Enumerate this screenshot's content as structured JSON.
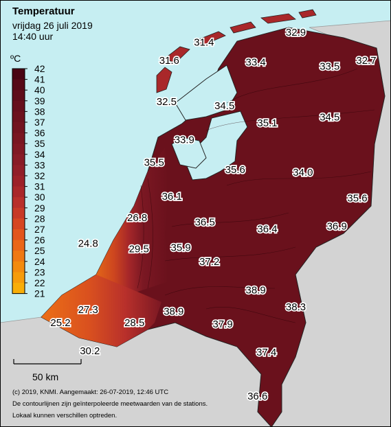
{
  "header": {
    "title": "Temperatuur",
    "date": "vrijdag 26 juli 2019",
    "time": "14:40 uur"
  },
  "legend": {
    "unit": "ºC",
    "ticks": [
      "42",
      "41",
      "40",
      "39",
      "38",
      "37",
      "36",
      "35",
      "34",
      "33",
      "32",
      "31",
      "30",
      "29",
      "28",
      "27",
      "26",
      "25",
      "24",
      "23",
      "22",
      "21"
    ],
    "colors": [
      "#3d0010",
      "#4a0514",
      "#560a18",
      "#5f0e1b",
      "#66101d",
      "#6c121e",
      "#721420",
      "#791722",
      "#801924",
      "#881c27",
      "#911f29",
      "#9c2229",
      "#a9282a",
      "#b8302b",
      "#c73a27",
      "#d64722",
      "#e2561d",
      "#ea6718",
      "#ef7913",
      "#f38b0e",
      "#f69c0b",
      "#f8ae08"
    ]
  },
  "scale_bar": {
    "label": "50 km"
  },
  "footer": {
    "line1": "(c) 2019, KNMI. Aangemaakt: 26-07-2019, 12:46 UTC",
    "line2": "De contourlijnen zijn geïnterpoleerde meetwaarden van de stations.",
    "line3": "Lokaal kunnen verschillen optreden."
  },
  "colors": {
    "sea": "#c6eef2",
    "land_foreign": "#d3d3d3",
    "hot": "#6a111c"
  },
  "stations": [
    {
      "label": "31.4",
      "value": 31.4,
      "lon": 5.17,
      "lat": 53.37
    },
    {
      "label": "32.9",
      "value": 32.9,
      "lon": 6.2,
      "lat": 53.44
    },
    {
      "label": "31.6",
      "value": 31.6,
      "lon": 4.78,
      "lat": 53.24
    },
    {
      "label": "33.4",
      "value": 33.4,
      "lon": 5.75,
      "lat": 53.23
    },
    {
      "label": "33.5",
      "value": 33.5,
      "lon": 6.58,
      "lat": 53.2
    },
    {
      "label": "32.7",
      "value": 32.7,
      "lon": 6.99,
      "lat": 53.24
    },
    {
      "label": "32.5",
      "value": 32.5,
      "lon": 4.75,
      "lat": 52.95
    },
    {
      "label": "34.5",
      "value": 34.5,
      "lon": 5.4,
      "lat": 52.92
    },
    {
      "label": "35.1",
      "value": 35.1,
      "lon": 5.88,
      "lat": 52.8
    },
    {
      "label": "34.5",
      "value": 34.5,
      "lon": 6.58,
      "lat": 52.84
    },
    {
      "label": "33.9",
      "value": 33.9,
      "lon": 4.95,
      "lat": 52.68
    },
    {
      "label": "35.5",
      "value": 35.5,
      "lon": 4.61,
      "lat": 52.52
    },
    {
      "label": "35.6",
      "value": 35.6,
      "lon": 5.52,
      "lat": 52.47
    },
    {
      "label": "34.0",
      "value": 34.0,
      "lon": 6.28,
      "lat": 52.45
    },
    {
      "label": "36.1",
      "value": 36.1,
      "lon": 4.81,
      "lat": 52.28
    },
    {
      "label": "35.6",
      "value": 35.6,
      "lon": 6.89,
      "lat": 52.27
    },
    {
      "label": "26.8",
      "value": 26.8,
      "lon": 4.42,
      "lat": 52.13
    },
    {
      "label": "36.5",
      "value": 36.5,
      "lon": 5.18,
      "lat": 52.1
    },
    {
      "label": "36.4",
      "value": 36.4,
      "lon": 5.88,
      "lat": 52.05
    },
    {
      "label": "36.9",
      "value": 36.9,
      "lon": 6.66,
      "lat": 52.07
    },
    {
      "label": "24.8",
      "value": 24.8,
      "lon": 3.87,
      "lat": 51.95
    },
    {
      "label": "29.5",
      "value": 29.5,
      "lon": 4.44,
      "lat": 51.91
    },
    {
      "label": "35.9",
      "value": 35.9,
      "lon": 4.91,
      "lat": 51.92
    },
    {
      "label": "37.2",
      "value": 37.2,
      "lon": 5.23,
      "lat": 51.82
    },
    {
      "label": "38.9",
      "value": 38.9,
      "lon": 5.75,
      "lat": 51.62
    },
    {
      "label": "38.9",
      "value": 38.9,
      "lon": 4.83,
      "lat": 51.47
    },
    {
      "label": "38.3",
      "value": 38.3,
      "lon": 6.2,
      "lat": 51.5
    },
    {
      "label": "27.3",
      "value": 27.3,
      "lon": 3.87,
      "lat": 51.48
    },
    {
      "label": "25.2",
      "value": 25.2,
      "lon": 3.56,
      "lat": 51.39
    },
    {
      "label": "28.5",
      "value": 28.5,
      "lon": 4.39,
      "lat": 51.39
    },
    {
      "label": "37.9",
      "value": 37.9,
      "lon": 5.38,
      "lat": 51.38
    },
    {
      "label": "30.2",
      "value": 30.2,
      "lon": 3.89,
      "lat": 51.19
    },
    {
      "label": "37.4",
      "value": 37.4,
      "lon": 5.87,
      "lat": 51.18
    },
    {
      "label": "36.6",
      "value": 36.6,
      "lon": 5.77,
      "lat": 50.87
    }
  ]
}
